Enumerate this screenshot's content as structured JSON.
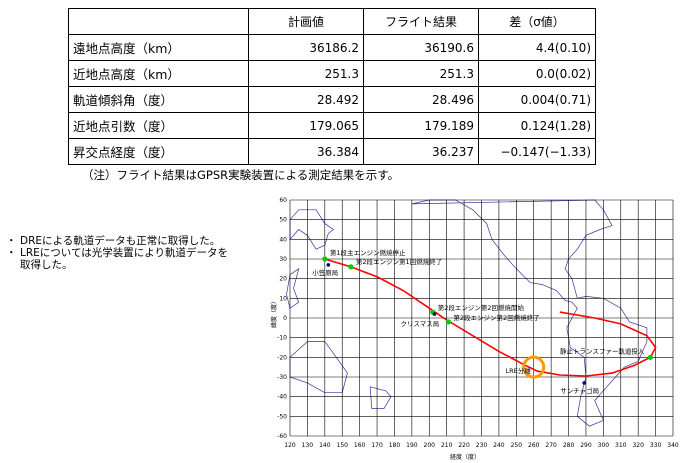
{
  "table": {
    "headers": [
      "",
      "計画値",
      "フライト結果",
      "差（σ値）"
    ],
    "rows": [
      {
        "label": "遠地点高度（km）",
        "plan": "36186.2",
        "flight": "36190.6",
        "diff": "4.4(0.10)"
      },
      {
        "label": "近地点高度（km）",
        "plan": "251.3",
        "flight": "251.3",
        "diff": "0.0(0.02)"
      },
      {
        "label": "軌道傾斜角（度）",
        "plan": "28.492",
        "flight": "28.496",
        "diff": "0.004(0.71)"
      },
      {
        "label": "近地点引数（度）",
        "plan": "179.065",
        "flight": "179.189",
        "diff": "0.124(1.28)"
      },
      {
        "label": "昇交点経度（度）",
        "plan": "36.384",
        "flight": "36.237",
        "diff": "−0.147(−1.33)"
      }
    ]
  },
  "note": "（注）フライト結果はGPSR実験装置による測定結果を示す。",
  "bullets": [
    {
      "text": "DREによる軌道データも正常に取得した。"
    },
    {
      "text": "LREについては光学装置により軌道データを",
      "cont": "取得した。"
    }
  ],
  "chart_data": {
    "type": "scatter",
    "xlabel": "経度（度）",
    "ylabel": "緯度（度）",
    "xlim": [
      120,
      340
    ],
    "ylim": [
      -60,
      60
    ],
    "xticks": [
      120,
      130,
      140,
      150,
      160,
      170,
      180,
      190,
      200,
      210,
      220,
      230,
      240,
      250,
      260,
      270,
      280,
      290,
      300,
      310,
      320,
      330,
      340
    ],
    "yticks": [
      60,
      50,
      40,
      30,
      20,
      10,
      0,
      -10,
      -20,
      -30,
      -40,
      -50,
      -60
    ],
    "grid": true,
    "colors": {
      "track": "#ff0000",
      "event": "#00cc00",
      "station": "#000080",
      "highlight": "#ff9900",
      "coast": "#3a2fa0"
    },
    "track": [
      [
        140,
        30
      ],
      [
        155,
        26
      ],
      [
        170,
        21
      ],
      [
        185,
        14
      ],
      [
        200,
        5
      ],
      [
        210,
        -1
      ],
      [
        225,
        -9
      ],
      [
        240,
        -17
      ],
      [
        255,
        -24
      ],
      [
        262,
        -27
      ],
      [
        275,
        -29
      ],
      [
        290,
        -29.5
      ],
      [
        305,
        -28
      ],
      [
        318,
        -24
      ],
      [
        327,
        -20
      ],
      [
        330,
        -15
      ],
      [
        325,
        -9
      ],
      [
        310,
        -3
      ],
      [
        295,
        0
      ],
      [
        275,
        3
      ]
    ],
    "events": [
      {
        "name": "第1段主エンジン燃焼停止",
        "x": 140,
        "y": 30
      },
      {
        "name": "第2段エンジン第1回燃焼終了",
        "x": 155,
        "y": 26
      },
      {
        "name": "第2段エンジン第2回燃焼開始",
        "x": 202,
        "y": 3
      },
      {
        "name": "第2段エンジン第2回燃焼終了",
        "x": 211,
        "y": -2
      },
      {
        "name": "静止トランスファー軌道投入",
        "x": 327,
        "y": -20
      }
    ],
    "stations": [
      {
        "name": "小笠原局",
        "x": 142,
        "y": 27
      },
      {
        "name": "クリスマス局",
        "x": 203,
        "y": 2
      },
      {
        "name": "サンチャゴ局",
        "x": 289,
        "y": -33
      }
    ],
    "highlight": {
      "name": "LRE分離",
      "x": 260,
      "y": -25
    }
  }
}
